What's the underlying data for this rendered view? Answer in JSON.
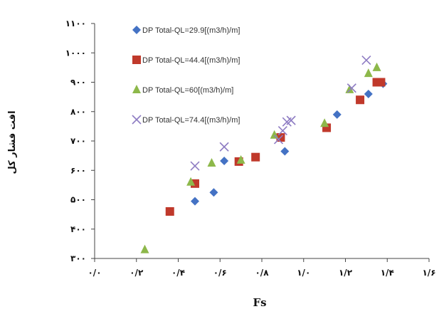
{
  "chart_data": {
    "type": "scatter",
    "title": "",
    "xlabel": "Fs",
    "ylabel": "افت فشار کل",
    "xlim": [
      0,
      1.6
    ],
    "ylim": [
      300,
      1100
    ],
    "x_tick_values": [
      0,
      0.2,
      0.4,
      0.6,
      0.8,
      1.0,
      1.2,
      1.4,
      1.6
    ],
    "x_tick_labels": [
      "۰/۰",
      "۰/۲",
      "۰/۴",
      "۰/۶",
      "۰/۸",
      "۱/۰",
      "۱/۲",
      "۱/۴",
      "۱/۶"
    ],
    "y_tick_values": [
      300,
      400,
      500,
      600,
      700,
      800,
      900,
      1000,
      1100
    ],
    "y_tick_labels": [
      "۳۰۰",
      "۴۰۰",
      "۵۰۰",
      "۶۰۰",
      "۷۰۰",
      "۸۰۰",
      "۹۰۰",
      "۱۰۰۰",
      "۱۱۰۰"
    ],
    "grid": false,
    "legend_position": "top-left",
    "series": [
      {
        "name": "DP Total-QL=29.9[(m3/h)/m]",
        "marker": "diamond",
        "color": "#4472C4",
        "points": [
          [
            0.48,
            495
          ],
          [
            0.57,
            525
          ],
          [
            0.62,
            632
          ],
          [
            0.91,
            665
          ],
          [
            1.16,
            790
          ],
          [
            1.31,
            860
          ],
          [
            1.38,
            895
          ]
        ]
      },
      {
        "name": "DP Total-QL=44.4[(m3/h)/m]",
        "marker": "square",
        "color": "#C0392B",
        "points": [
          [
            0.36,
            460
          ],
          [
            0.48,
            555
          ],
          [
            0.69,
            630
          ],
          [
            0.77,
            645
          ],
          [
            0.89,
            712
          ],
          [
            1.11,
            745
          ],
          [
            1.27,
            840
          ],
          [
            1.35,
            900
          ],
          [
            1.37,
            900
          ]
        ]
      },
      {
        "name": "DP Total-QL=60[(m3/h)/m]",
        "marker": "triangle",
        "color": "#8DB84A",
        "points": [
          [
            0.24,
            330
          ],
          [
            0.46,
            560
          ],
          [
            0.56,
            625
          ],
          [
            0.7,
            635
          ],
          [
            0.86,
            720
          ],
          [
            1.1,
            760
          ],
          [
            1.22,
            875
          ],
          [
            1.31,
            930
          ],
          [
            1.35,
            950
          ]
        ]
      },
      {
        "name": "DP Total-QL=74.4[(m3/h)/m]",
        "marker": "x",
        "color": "#8E7CC3",
        "points": [
          [
            0.48,
            615
          ],
          [
            0.62,
            680
          ],
          [
            0.88,
            705
          ],
          [
            0.9,
            735
          ],
          [
            0.92,
            765
          ],
          [
            0.94,
            770
          ],
          [
            1.23,
            880
          ],
          [
            1.3,
            975
          ]
        ]
      }
    ]
  }
}
